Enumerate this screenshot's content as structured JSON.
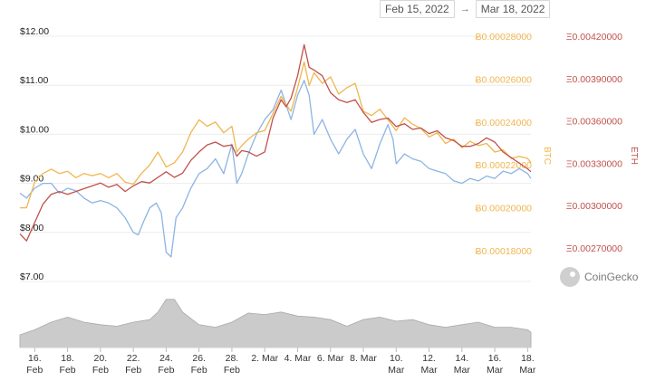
{
  "date_range": {
    "from": "Feb 15, 2022",
    "to": "Mar 18, 2022",
    "arrow": "→"
  },
  "watermark": "CoinGecko",
  "chart_data": {
    "type": "line",
    "usd_axis": {
      "ticks": [
        "$12.00",
        "$11.00",
        "$10.00",
        "$9.00",
        "$8.00",
        "$7.00"
      ],
      "values": [
        12,
        11,
        10,
        9,
        8,
        7
      ],
      "range": [
        7,
        12
      ],
      "color": "#222222"
    },
    "btc_axis": {
      "label": "BTC",
      "ticks": [
        "Ƀ0.00028000",
        "Ƀ0.00026000",
        "Ƀ0.00024000",
        "Ƀ0.00022000",
        "Ƀ0.00020000",
        "Ƀ0.00018000"
      ],
      "values": [
        0.00028,
        0.00026,
        0.00024,
        0.00022,
        0.0002,
        0.00018
      ],
      "range": [
        0.000175,
        0.00028
      ],
      "color": "#f0b64f"
    },
    "eth_axis": {
      "label": "ETH",
      "ticks": [
        "Ξ0.00420000",
        "Ξ0.00390000",
        "Ξ0.00360000",
        "Ξ0.00330000",
        "Ξ0.00300000",
        "Ξ0.00270000"
      ],
      "values": [
        0.0042,
        0.0039,
        0.0036,
        0.0033,
        0.003,
        0.0027
      ],
      "range": [
        0.0026,
        0.0042
      ],
      "color": "#c0514b"
    },
    "x_ticks": [
      {
        "line1": "16.",
        "line2": "Feb",
        "day": 1
      },
      {
        "line1": "18.",
        "line2": "Feb",
        "day": 3
      },
      {
        "line1": "20.",
        "line2": "Feb",
        "day": 5
      },
      {
        "line1": "22.",
        "line2": "Feb",
        "day": 7
      },
      {
        "line1": "24.",
        "line2": "Feb",
        "day": 9
      },
      {
        "line1": "26.",
        "line2": "Feb",
        "day": 11
      },
      {
        "line1": "28.",
        "line2": "Feb",
        "day": 13
      },
      {
        "line1": "2. Mar",
        "line2": "",
        "day": 15
      },
      {
        "line1": "4. Mar",
        "line2": "",
        "day": 17
      },
      {
        "line1": "6. Mar",
        "line2": "",
        "day": 19
      },
      {
        "line1": "8. Mar",
        "line2": "",
        "day": 21
      },
      {
        "line1": "10.",
        "line2": "Mar",
        "day": 23
      },
      {
        "line1": "12.",
        "line2": "Mar",
        "day": 25
      },
      {
        "line1": "14.",
        "line2": "Mar",
        "day": 27
      },
      {
        "line1": "16.",
        "line2": "Mar",
        "day": 29
      },
      {
        "line1": "18.",
        "line2": "Mar",
        "day": 31
      }
    ],
    "x_range_days": [
      0.1,
      31.2
    ],
    "series": [
      {
        "axis": "usd",
        "color": "#8cb4e3",
        "points": [
          [
            0.1,
            8.8
          ],
          [
            0.5,
            8.7
          ],
          [
            1.0,
            8.9
          ],
          [
            1.5,
            9.0
          ],
          [
            2.0,
            9.0
          ],
          [
            2.5,
            8.8
          ],
          [
            3.0,
            8.9
          ],
          [
            3.5,
            8.85
          ],
          [
            4.0,
            8.7
          ],
          [
            4.5,
            8.6
          ],
          [
            5.0,
            8.65
          ],
          [
            5.5,
            8.6
          ],
          [
            6.0,
            8.5
          ],
          [
            6.5,
            8.3
          ],
          [
            7.0,
            8.0
          ],
          [
            7.3,
            7.95
          ],
          [
            7.6,
            8.2
          ],
          [
            8.0,
            8.5
          ],
          [
            8.4,
            8.6
          ],
          [
            8.7,
            8.4
          ],
          [
            9.0,
            7.6
          ],
          [
            9.3,
            7.5
          ],
          [
            9.6,
            8.3
          ],
          [
            10.0,
            8.5
          ],
          [
            10.5,
            8.9
          ],
          [
            11.0,
            9.2
          ],
          [
            11.5,
            9.3
          ],
          [
            12.0,
            9.5
          ],
          [
            12.5,
            9.2
          ],
          [
            13.0,
            9.8
          ],
          [
            13.3,
            9.0
          ],
          [
            13.6,
            9.2
          ],
          [
            14.0,
            9.6
          ],
          [
            14.5,
            10.0
          ],
          [
            15.0,
            10.3
          ],
          [
            15.5,
            10.5
          ],
          [
            16.0,
            10.9
          ],
          [
            16.3,
            10.6
          ],
          [
            16.6,
            10.3
          ],
          [
            17.0,
            10.8
          ],
          [
            17.4,
            11.1
          ],
          [
            17.7,
            10.8
          ],
          [
            18.0,
            10.0
          ],
          [
            18.5,
            10.3
          ],
          [
            19.0,
            9.9
          ],
          [
            19.5,
            9.6
          ],
          [
            20.0,
            9.9
          ],
          [
            20.5,
            10.1
          ],
          [
            21.0,
            9.6
          ],
          [
            21.5,
            9.3
          ],
          [
            22.0,
            9.8
          ],
          [
            22.5,
            10.2
          ],
          [
            22.8,
            9.9
          ],
          [
            23.0,
            9.4
          ],
          [
            23.5,
            9.6
          ],
          [
            24.0,
            9.5
          ],
          [
            24.5,
            9.45
          ],
          [
            25.0,
            9.3
          ],
          [
            25.5,
            9.25
          ],
          [
            26.0,
            9.2
          ],
          [
            26.5,
            9.05
          ],
          [
            27.0,
            9.0
          ],
          [
            27.5,
            9.1
          ],
          [
            28.0,
            9.05
          ],
          [
            28.5,
            9.15
          ],
          [
            29.0,
            9.1
          ],
          [
            29.5,
            9.25
          ],
          [
            30.0,
            9.2
          ],
          [
            30.5,
            9.3
          ],
          [
            31.0,
            9.2
          ],
          [
            31.2,
            9.1
          ]
        ]
      },
      {
        "axis": "btc",
        "label": "BTC",
        "color": "#f0b64f",
        "points": [
          [
            0.1,
            0.0002
          ],
          [
            0.5,
            0.0002
          ],
          [
            1.0,
            0.000212
          ],
          [
            1.5,
            0.000216
          ],
          [
            2.0,
            0.000218
          ],
          [
            2.5,
            0.000216
          ],
          [
            3.0,
            0.000217
          ],
          [
            3.5,
            0.000214
          ],
          [
            4.0,
            0.000216
          ],
          [
            4.5,
            0.000215
          ],
          [
            5.0,
            0.000216
          ],
          [
            5.5,
            0.000214
          ],
          [
            6.0,
            0.000216
          ],
          [
            6.5,
            0.000212
          ],
          [
            7.0,
            0.000211
          ],
          [
            7.5,
            0.000216
          ],
          [
            8.0,
            0.00022
          ],
          [
            8.5,
            0.000226
          ],
          [
            9.0,
            0.000219
          ],
          [
            9.5,
            0.000221
          ],
          [
            10.0,
            0.000226
          ],
          [
            10.5,
            0.000235
          ],
          [
            11.0,
            0.000241
          ],
          [
            11.5,
            0.000238
          ],
          [
            12.0,
            0.00024
          ],
          [
            12.5,
            0.000235
          ],
          [
            13.0,
            0.000238
          ],
          [
            13.3,
            0.000226
          ],
          [
            13.6,
            0.000229
          ],
          [
            14.0,
            0.000232
          ],
          [
            14.5,
            0.000235
          ],
          [
            15.0,
            0.000236
          ],
          [
            15.5,
            0.000244
          ],
          [
            16.0,
            0.000252
          ],
          [
            16.3,
            0.000248
          ],
          [
            16.6,
            0.000245
          ],
          [
            17.0,
            0.000256
          ],
          [
            17.4,
            0.000268
          ],
          [
            17.7,
            0.000257
          ],
          [
            18.0,
            0.000263
          ],
          [
            18.5,
            0.000258
          ],
          [
            19.0,
            0.000261
          ],
          [
            19.5,
            0.000253
          ],
          [
            20.0,
            0.000256
          ],
          [
            20.5,
            0.000258
          ],
          [
            21.0,
            0.000245
          ],
          [
            21.5,
            0.000243
          ],
          [
            22.0,
            0.000246
          ],
          [
            22.5,
            0.000241
          ],
          [
            23.0,
            0.000236
          ],
          [
            23.5,
            0.000242
          ],
          [
            24.0,
            0.000239
          ],
          [
            24.5,
            0.000237
          ],
          [
            25.0,
            0.000233
          ],
          [
            25.5,
            0.000235
          ],
          [
            26.0,
            0.00023
          ],
          [
            26.5,
            0.000232
          ],
          [
            27.0,
            0.000228
          ],
          [
            27.5,
            0.000231
          ],
          [
            28.0,
            0.000229
          ],
          [
            28.5,
            0.00023
          ],
          [
            29.0,
            0.000226
          ],
          [
            29.5,
            0.000227
          ],
          [
            30.0,
            0.000223
          ],
          [
            30.5,
            0.000224
          ],
          [
            31.0,
            0.000223
          ],
          [
            31.2,
            0.000221
          ]
        ]
      },
      {
        "axis": "eth",
        "label": "ETH",
        "color": "#c0514b",
        "points": [
          [
            0.1,
            0.0028
          ],
          [
            0.5,
            0.00275
          ],
          [
            1.0,
            0.00288
          ],
          [
            1.5,
            0.00301
          ],
          [
            2.0,
            0.00308
          ],
          [
            2.5,
            0.0031
          ],
          [
            3.0,
            0.00308
          ],
          [
            3.5,
            0.0031
          ],
          [
            4.0,
            0.00312
          ],
          [
            4.5,
            0.00314
          ],
          [
            5.0,
            0.00316
          ],
          [
            5.5,
            0.00313
          ],
          [
            6.0,
            0.00315
          ],
          [
            6.5,
            0.0031
          ],
          [
            7.0,
            0.00314
          ],
          [
            7.5,
            0.00317
          ],
          [
            8.0,
            0.00316
          ],
          [
            8.5,
            0.0032
          ],
          [
            9.0,
            0.00324
          ],
          [
            9.5,
            0.0032
          ],
          [
            10.0,
            0.00323
          ],
          [
            10.5,
            0.00332
          ],
          [
            11.0,
            0.00338
          ],
          [
            11.5,
            0.00343
          ],
          [
            12.0,
            0.00345
          ],
          [
            12.5,
            0.00342
          ],
          [
            13.0,
            0.00343
          ],
          [
            13.3,
            0.00335
          ],
          [
            13.6,
            0.00339
          ],
          [
            14.0,
            0.00338
          ],
          [
            14.5,
            0.00335
          ],
          [
            15.0,
            0.00338
          ],
          [
            15.5,
            0.00362
          ],
          [
            16.0,
            0.00375
          ],
          [
            16.3,
            0.0037
          ],
          [
            16.6,
            0.00376
          ],
          [
            17.0,
            0.00392
          ],
          [
            17.4,
            0.00414
          ],
          [
            17.7,
            0.00398
          ],
          [
            18.0,
            0.00396
          ],
          [
            18.5,
            0.00392
          ],
          [
            19.0,
            0.0038
          ],
          [
            19.5,
            0.00375
          ],
          [
            20.0,
            0.00373
          ],
          [
            20.5,
            0.00375
          ],
          [
            21.0,
            0.00366
          ],
          [
            21.5,
            0.00359
          ],
          [
            22.0,
            0.00361
          ],
          [
            22.5,
            0.00362
          ],
          [
            23.0,
            0.00356
          ],
          [
            23.5,
            0.00358
          ],
          [
            24.0,
            0.00354
          ],
          [
            24.5,
            0.00355
          ],
          [
            25.0,
            0.00351
          ],
          [
            25.5,
            0.00353
          ],
          [
            26.0,
            0.00348
          ],
          [
            26.5,
            0.00346
          ],
          [
            27.0,
            0.00342
          ],
          [
            27.5,
            0.00342
          ],
          [
            28.0,
            0.00344
          ],
          [
            28.5,
            0.00348
          ],
          [
            29.0,
            0.00345
          ],
          [
            29.5,
            0.00338
          ],
          [
            30.0,
            0.00334
          ],
          [
            30.5,
            0.0033
          ],
          [
            31.0,
            0.00326
          ],
          [
            31.2,
            0.00324
          ]
        ]
      },
      {
        "type": "volume_area",
        "color": "#b9b9b9",
        "points": [
          [
            0.1,
            0.25
          ],
          [
            1.0,
            0.35
          ],
          [
            2.0,
            0.5
          ],
          [
            3.0,
            0.6
          ],
          [
            4.0,
            0.5
          ],
          [
            5.0,
            0.45
          ],
          [
            6.0,
            0.42
          ],
          [
            7.0,
            0.5
          ],
          [
            8.0,
            0.55
          ],
          [
            8.5,
            0.7
          ],
          [
            9.0,
            0.95
          ],
          [
            9.5,
            0.95
          ],
          [
            10.0,
            0.7
          ],
          [
            11.0,
            0.45
          ],
          [
            12.0,
            0.4
          ],
          [
            13.0,
            0.5
          ],
          [
            14.0,
            0.68
          ],
          [
            15.0,
            0.65
          ],
          [
            16.0,
            0.7
          ],
          [
            17.0,
            0.62
          ],
          [
            18.0,
            0.6
          ],
          [
            19.0,
            0.55
          ],
          [
            20.0,
            0.42
          ],
          [
            21.0,
            0.55
          ],
          [
            22.0,
            0.6
          ],
          [
            23.0,
            0.52
          ],
          [
            24.0,
            0.55
          ],
          [
            25.0,
            0.45
          ],
          [
            26.0,
            0.4
          ],
          [
            27.0,
            0.45
          ],
          [
            28.0,
            0.5
          ],
          [
            29.0,
            0.4
          ],
          [
            30.0,
            0.4
          ],
          [
            31.0,
            0.35
          ],
          [
            31.2,
            0.3
          ]
        ]
      }
    ]
  }
}
